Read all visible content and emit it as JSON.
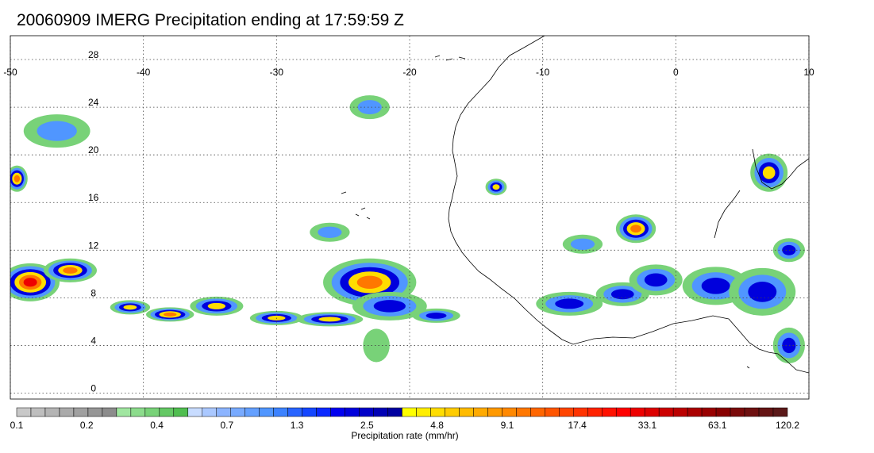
{
  "title": "20060909 IMERG Precipitation ending at 17:59:59 Z",
  "map": {
    "lon_labels": [
      "-50",
      "-40",
      "-30",
      "-20",
      "-10",
      "0",
      "10"
    ],
    "lat_labels": [
      "28",
      "24",
      "20",
      "16",
      "12",
      "8",
      "4",
      "0"
    ],
    "lon_values": [
      -50,
      -40,
      -30,
      -20,
      -10,
      0,
      10
    ],
    "lat_values": [
      28,
      24,
      20,
      16,
      12,
      8,
      4,
      0
    ],
    "lon_range": [
      -50,
      10
    ],
    "lat_range": [
      -0.5,
      30
    ],
    "grid": true
  },
  "colorbar": {
    "label": "Precipitation rate (mm/hr)",
    "tick_labels": [
      "0.1",
      "0.2",
      "0.4",
      "0.7",
      "1.3",
      "2.5",
      "4.8",
      "9.1",
      "17.4",
      "33.1",
      "63.1",
      "120.2"
    ],
    "colors": [
      "#c8c8c8",
      "#bebebe",
      "#b4b4b4",
      "#aaaaaa",
      "#a0a0a0",
      "#969696",
      "#8c8c8c",
      "#a0e6a0",
      "#8cdc8c",
      "#78d278",
      "#64c864",
      "#50be50",
      "#c8dcff",
      "#aac8ff",
      "#8cb4ff",
      "#78aaff",
      "#64a0ff",
      "#5096ff",
      "#3c82ff",
      "#2864ff",
      "#1446ff",
      "#0a28ff",
      "#0000f0",
      "#0000dc",
      "#0000c8",
      "#0000b4",
      "#0000a0",
      "#ffff00",
      "#ffee00",
      "#ffdd00",
      "#ffcc00",
      "#ffbb00",
      "#ffaa00",
      "#ff9900",
      "#ff8800",
      "#ff7700",
      "#ff6600",
      "#ff5500",
      "#ff4400",
      "#ff3300",
      "#ff2200",
      "#ff1100",
      "#ff0000",
      "#ee0000",
      "#dd0000",
      "#cc0000",
      "#bb0000",
      "#aa0000",
      "#990000",
      "#880000",
      "#7a0a0a",
      "#6e1010",
      "#641414",
      "#5a1818"
    ]
  },
  "precip_cells": [
    {
      "lon": -48.5,
      "lat": 9.3,
      "rx": 2.2,
      "ry": 1.6,
      "level": 0.95
    },
    {
      "lon": -45.5,
      "lat": 10.3,
      "rx": 2.0,
      "ry": 1.0,
      "level": 0.85
    },
    {
      "lon": -41,
      "lat": 7.2,
      "rx": 1.5,
      "ry": 0.6,
      "level": 0.7
    },
    {
      "lon": -38,
      "lat": 6.6,
      "rx": 1.8,
      "ry": 0.6,
      "level": 0.75
    },
    {
      "lon": -34.5,
      "lat": 7.3,
      "rx": 2.0,
      "ry": 0.8,
      "level": 0.7
    },
    {
      "lon": -30,
      "lat": 6.3,
      "rx": 2.0,
      "ry": 0.6,
      "level": 0.7
    },
    {
      "lon": -26,
      "lat": 6.2,
      "rx": 2.5,
      "ry": 0.6,
      "level": 0.6
    },
    {
      "lon": -23,
      "lat": 9.3,
      "rx": 3.5,
      "ry": 2.0,
      "level": 0.8
    },
    {
      "lon": -21.5,
      "lat": 7.3,
      "rx": 2.8,
      "ry": 1.2,
      "level": 0.55
    },
    {
      "lon": -18,
      "lat": 6.5,
      "rx": 1.8,
      "ry": 0.6,
      "level": 0.5
    },
    {
      "lon": -49.5,
      "lat": 18,
      "rx": 0.8,
      "ry": 1.1,
      "level": 0.8
    },
    {
      "lon": -46.5,
      "lat": 22,
      "rx": 2.5,
      "ry": 1.4,
      "level": 0.3
    },
    {
      "lon": -13.5,
      "lat": 17.3,
      "rx": 0.8,
      "ry": 0.7,
      "level": 0.65
    },
    {
      "lon": -8,
      "lat": 7.5,
      "rx": 2.5,
      "ry": 1.0,
      "level": 0.5
    },
    {
      "lon": -4,
      "lat": 8.3,
      "rx": 2.0,
      "ry": 1.0,
      "level": 0.5
    },
    {
      "lon": -3,
      "lat": 13.8,
      "rx": 1.5,
      "ry": 1.2,
      "level": 0.9
    },
    {
      "lon": -1.5,
      "lat": 9.5,
      "rx": 2.0,
      "ry": 1.3,
      "level": 0.45
    },
    {
      "lon": 3,
      "lat": 9.0,
      "rx": 2.5,
      "ry": 1.6,
      "level": 0.5
    },
    {
      "lon": 6.5,
      "lat": 8.5,
      "rx": 2.5,
      "ry": 2.0,
      "level": 0.55
    },
    {
      "lon": 7,
      "lat": 18.5,
      "rx": 1.4,
      "ry": 1.6,
      "level": 0.6
    },
    {
      "lon": 8.5,
      "lat": 4.0,
      "rx": 1.2,
      "ry": 1.5,
      "level": 0.55
    },
    {
      "lon": 8.5,
      "lat": 12.0,
      "rx": 1.2,
      "ry": 1.0,
      "level": 0.55
    },
    {
      "lon": -23,
      "lat": 24,
      "rx": 1.5,
      "ry": 1.0,
      "level": 0.4
    },
    {
      "lon": -22.5,
      "lat": 4.0,
      "rx": 1.0,
      "ry": 1.4,
      "level": 0.2
    },
    {
      "lon": -7,
      "lat": 12.5,
      "rx": 1.5,
      "ry": 0.8,
      "level": 0.35
    },
    {
      "lon": -26,
      "lat": 13.5,
      "rx": 1.5,
      "ry": 0.8,
      "level": 0.35
    }
  ]
}
